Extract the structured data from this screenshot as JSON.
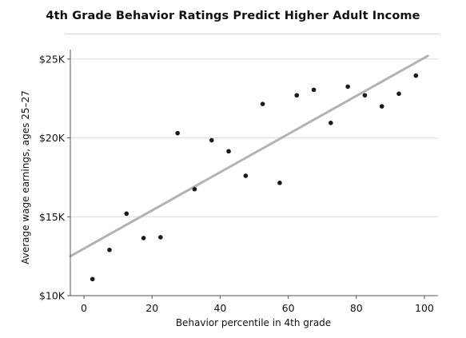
{
  "chart_data": {
    "type": "scatter",
    "title": "4th Grade Behavior Ratings Predict Higher Adult Income",
    "xlabel": "Behavior percentile in 4th grade",
    "ylabel": "Average wage earnings, ages 25–27",
    "xlim": [
      -4,
      104
    ],
    "ylim": [
      10000,
      25500
    ],
    "x_ticks": [
      0,
      20,
      40,
      60,
      80,
      100
    ],
    "x_tick_labels": [
      "0",
      "20",
      "40",
      "60",
      "80",
      "100"
    ],
    "y_ticks": [
      10000,
      15000,
      20000,
      25000
    ],
    "y_tick_labels": [
      "$10K",
      "$15K",
      "$20K",
      "$25K"
    ],
    "grid": "horizontal",
    "points": [
      {
        "x": 2.5,
        "y": 11050
      },
      {
        "x": 7.5,
        "y": 12900
      },
      {
        "x": 12.5,
        "y": 15200
      },
      {
        "x": 17.5,
        "y": 13650
      },
      {
        "x": 22.5,
        "y": 13700
      },
      {
        "x": 27.5,
        "y": 20300
      },
      {
        "x": 32.5,
        "y": 16750
      },
      {
        "x": 37.5,
        "y": 19850
      },
      {
        "x": 42.5,
        "y": 19150
      },
      {
        "x": 47.5,
        "y": 17600
      },
      {
        "x": 52.5,
        "y": 22150
      },
      {
        "x": 57.5,
        "y": 17150
      },
      {
        "x": 62.5,
        "y": 22700
      },
      {
        "x": 67.5,
        "y": 23050
      },
      {
        "x": 72.5,
        "y": 20950
      },
      {
        "x": 77.5,
        "y": 23250
      },
      {
        "x": 82.5,
        "y": 22700
      },
      {
        "x": 87.5,
        "y": 22000
      },
      {
        "x": 92.5,
        "y": 22800
      },
      {
        "x": 97.5,
        "y": 23950
      }
    ],
    "fit_line": {
      "x": [
        -4,
        101
      ],
      "y": [
        12500,
        25200
      ]
    },
    "colors": {
      "points": "#1a1a1a",
      "fit_line": "#b3b3b3",
      "grid": "#dcdcdc",
      "axis": "#555555"
    }
  }
}
